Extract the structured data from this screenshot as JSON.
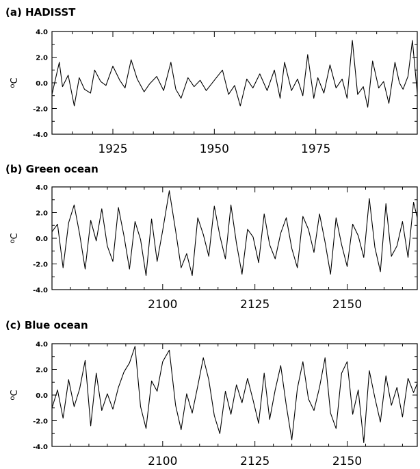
{
  "chart_data": [
    {
      "type": "line",
      "title": "(a) HADISST",
      "ylabel": "oC",
      "xlim": [
        1910,
        2000
      ],
      "ylim": [
        -4.0,
        4.0
      ],
      "yticks": [
        "4.0",
        "2.0",
        "0.0",
        "-2.0",
        "-4.0"
      ],
      "xticks": [
        "1925",
        "1950",
        "1975"
      ],
      "xtick_values": [
        1925,
        1950,
        1975
      ],
      "grid": false,
      "series": [
        {
          "x": [
            1910,
            1911.8,
            1912.6,
            1914,
            1915.5,
            1916.7,
            1918,
            1919.5,
            1920.5,
            1922,
            1923.3,
            1925,
            1926.7,
            1928,
            1929.5,
            1931,
            1932.7,
            1934,
            1935.8,
            1937.5,
            1939.3,
            1940.5,
            1941.8,
            1943.5,
            1945,
            1946.5,
            1948,
            1950,
            1952,
            1953.5,
            1955,
            1956.4,
            1958,
            1959.5,
            1961.2,
            1963,
            1964.8,
            1966.2,
            1967.3,
            1969,
            1970.5,
            1971.8,
            1973,
            1974.5,
            1975.5,
            1977,
            1978.5,
            1980,
            1981.5,
            1982.7,
            1984,
            1985.3,
            1986.7,
            1987.8,
            1989,
            1990.5,
            1991.7,
            1993,
            1994.5,
            1995.6,
            1996.5,
            1997.7,
            1998.8,
            2000
          ],
          "values": [
            -0.9,
            1.6,
            -0.3,
            0.6,
            -1.8,
            0.4,
            -0.5,
            -0.8,
            1.0,
            0.1,
            -0.2,
            1.3,
            0.2,
            -0.4,
            1.8,
            0.3,
            -0.7,
            -0.1,
            0.5,
            -0.6,
            1.6,
            -0.5,
            -1.2,
            0.4,
            -0.3,
            0.2,
            -0.6,
            0.2,
            1.0,
            -0.9,
            -0.2,
            -1.8,
            0.3,
            -0.4,
            0.7,
            -0.6,
            1.0,
            -1.2,
            1.6,
            -0.6,
            0.3,
            -1.0,
            2.2,
            -1.2,
            0.4,
            -0.8,
            1.4,
            -0.4,
            0.3,
            -1.2,
            3.3,
            -0.9,
            -0.3,
            -1.9,
            1.7,
            -0.4,
            0.1,
            -1.6,
            1.6,
            0.0,
            -0.5,
            0.5,
            3.3,
            -0.8
          ]
        }
      ]
    },
    {
      "type": "line",
      "title": "(b) Green ocean",
      "ylabel": "oC",
      "xlim": [
        2070,
        2169
      ],
      "ylim": [
        -4.0,
        4.0
      ],
      "yticks": [
        "4.0",
        "2.0",
        "0.0",
        "-2.0",
        "-4.0"
      ],
      "xticks": [
        "2100",
        "2125",
        "2150"
      ],
      "xtick_values": [
        2100,
        2125,
        2150
      ],
      "grid": false,
      "series": [
        {
          "x": [
            2070,
            2071.5,
            2073,
            2074.5,
            2076,
            2077.5,
            2079,
            2080.5,
            2082,
            2083.5,
            2085,
            2086.5,
            2088,
            2089.5,
            2091,
            2092.5,
            2094,
            2095.5,
            2097,
            2098.5,
            2100,
            2101.8,
            2103.5,
            2105,
            2106.5,
            2108,
            2109.5,
            2111,
            2112.5,
            2114,
            2115.5,
            2117,
            2118.5,
            2120,
            2121.5,
            2123,
            2124.5,
            2126,
            2127.5,
            2129,
            2130.5,
            2132,
            2133.5,
            2135,
            2136.5,
            2138,
            2139.5,
            2141,
            2142.5,
            2144,
            2145.5,
            2147,
            2148.5,
            2150,
            2151.5,
            2153,
            2154.5,
            2156,
            2157.5,
            2159,
            2160.5,
            2162,
            2163.5,
            2165,
            2166.5,
            2168,
            2169
          ],
          "values": [
            0.5,
            1.1,
            -2.3,
            1.2,
            2.6,
            0.3,
            -2.4,
            1.4,
            -0.2,
            2.3,
            -0.6,
            -1.8,
            2.4,
            0.2,
            -2.4,
            1.3,
            -0.1,
            -2.9,
            1.5,
            -1.8,
            0.6,
            3.7,
            0.6,
            -2.3,
            -1.2,
            -2.9,
            1.6,
            0.3,
            -1.4,
            2.5,
            0.2,
            -1.6,
            2.6,
            -0.4,
            -2.8,
            0.7,
            0.1,
            -1.9,
            1.9,
            -0.5,
            -1.6,
            0.4,
            1.6,
            -0.8,
            -2.3,
            1.7,
            0.7,
            -1.1,
            1.9,
            -0.3,
            -2.8,
            1.6,
            -0.5,
            -2.2,
            1.1,
            0.2,
            -1.5,
            3.1,
            -0.7,
            -2.6,
            2.7,
            -1.4,
            -0.6,
            1.3,
            -1.5,
            2.8,
            1.6
          ]
        }
      ]
    },
    {
      "type": "line",
      "title": "(c) Blue ocean",
      "ylabel": "oC",
      "xlim": [
        2070,
        2169
      ],
      "ylim": [
        -4.0,
        4.0
      ],
      "yticks": [
        "4.0",
        "2.0",
        "0.0",
        "-2.0",
        "-4.0"
      ],
      "xticks": [
        "2100",
        "2125",
        "2150"
      ],
      "xtick_values": [
        2100,
        2125,
        2150
      ],
      "grid": false,
      "series": [
        {
          "x": [
            2070,
            2071.5,
            2073,
            2074.5,
            2076,
            2077.5,
            2079,
            2080.5,
            2082,
            2083.5,
            2085,
            2086.5,
            2088,
            2089.5,
            2091,
            2092.5,
            2094,
            2095.5,
            2097,
            2098.5,
            2100,
            2101.8,
            2103.5,
            2105,
            2106.5,
            2108,
            2109.5,
            2111,
            2112.5,
            2114,
            2115.5,
            2117,
            2118.5,
            2120,
            2121.5,
            2123,
            2124.5,
            2126,
            2127.5,
            2129,
            2130.5,
            2132,
            2133.5,
            2135,
            2136.5,
            2138,
            2139.5,
            2141,
            2142.5,
            2144,
            2145.5,
            2147,
            2148.5,
            2150,
            2151.5,
            2153,
            2154.5,
            2156,
            2157.5,
            2159,
            2160.5,
            2162,
            2163.5,
            2165,
            2166.5,
            2168,
            2169
          ],
          "values": [
            -1.0,
            0.4,
            -1.8,
            1.2,
            -0.9,
            0.5,
            2.7,
            -2.4,
            1.7,
            -1.2,
            0.1,
            -1.1,
            0.6,
            1.8,
            2.5,
            3.8,
            -0.9,
            -2.6,
            1.1,
            0.3,
            2.6,
            3.5,
            -0.8,
            -2.7,
            0.1,
            -1.4,
            0.7,
            2.9,
            1.2,
            -1.6,
            -3.0,
            0.3,
            -1.5,
            0.8,
            -0.6,
            1.3,
            -0.4,
            -2.2,
            1.7,
            -1.9,
            0.4,
            2.3,
            -0.8,
            -3.5,
            0.5,
            2.6,
            -0.3,
            -1.2,
            0.6,
            2.9,
            -1.4,
            -2.6,
            1.7,
            2.6,
            -1.5,
            0.4,
            -3.7,
            1.9,
            -0.2,
            -2.1,
            1.5,
            -0.8,
            0.6,
            -1.7,
            1.3,
            0.2,
            0.9
          ]
        }
      ]
    }
  ]
}
